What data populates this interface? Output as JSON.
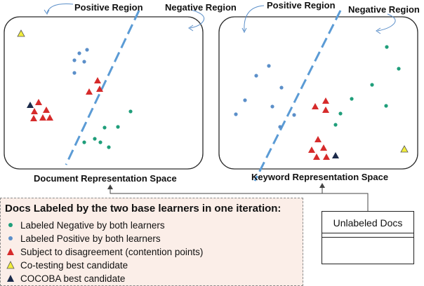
{
  "labels": {
    "left_positive_region": "Positive Region",
    "left_negative_region": "Negative Region",
    "right_positive_region": "Positive Region",
    "right_negative_region": "Negative Region",
    "left_space": "Document Representation Space",
    "right_space": "Keyword Representation Space"
  },
  "legend": {
    "title": "Docs Labeled by the two base learners in one iteration:",
    "items": [
      {
        "marker": "green-dot",
        "label": "Labeled Negative by both learners"
      },
      {
        "marker": "blue-dot",
        "label": "Labeled Positive by both learners"
      },
      {
        "marker": "red-triangle",
        "label": "Subject to disagreement (contention points)"
      },
      {
        "marker": "yellow-triangle",
        "label": "Co-testing best candidate"
      },
      {
        "marker": "navy-triangle",
        "label": "COCOBA best candidate"
      }
    ]
  },
  "unlabeled_box": {
    "title": "Unlabeled Docs"
  },
  "colors": {
    "green": "#1f9e7a",
    "blue": "#5b8fc9",
    "red": "#d62b2b",
    "yellow": "#f2ee3c",
    "navy": "#1b2a4a",
    "divider": "#5b9bd5",
    "legend_bg": "#fbeee8"
  }
}
